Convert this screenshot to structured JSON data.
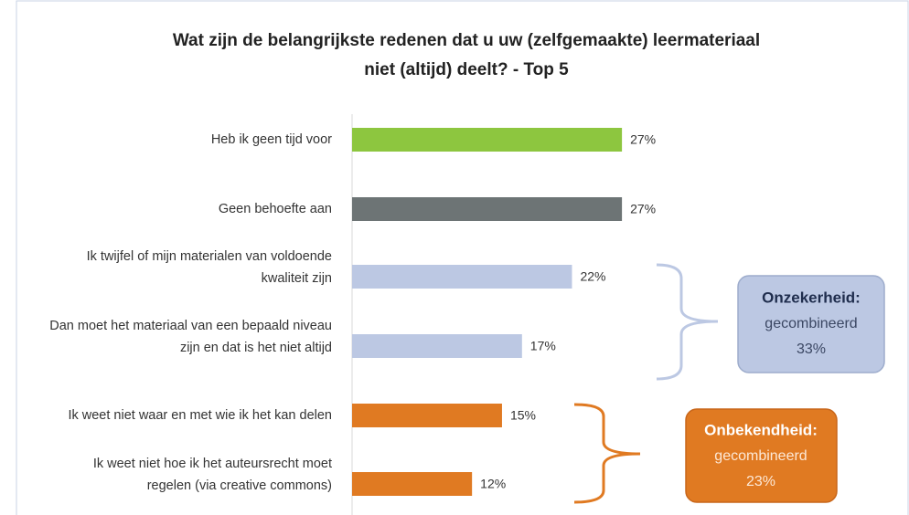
{
  "chart_data": {
    "type": "bar",
    "orientation": "horizontal",
    "title": [
      "Wat zijn de belangrijkste redenen dat u uw (zelfgemaakte) leermateriaal",
      "niet (altijd) deelt? - Top 5"
    ],
    "categories": [
      [
        "Heb ik geen tijd voor"
      ],
      [
        "Geen behoefte aan"
      ],
      [
        "Ik twijfel of mijn materialen van voldoende",
        "kwaliteit zijn"
      ],
      [
        "Dan moet het materiaal van een bepaald niveau",
        "zijn en dat is het niet altijd"
      ],
      [
        "Ik weet niet waar en met wie ik het kan delen"
      ],
      [
        "Ik weet niet hoe ik het auteursrecht moet",
        "regelen (via creative commons)"
      ]
    ],
    "values": [
      27,
      27,
      22,
      17,
      15,
      12
    ],
    "value_labels": [
      "27%",
      "27%",
      "22%",
      "17%",
      "15%",
      "12%"
    ],
    "colors": [
      "#8dc63f",
      "#6d7475",
      "#bcc8e3",
      "#bcc8e3",
      "#e07a22",
      "#e07a22"
    ],
    "annotations": [
      {
        "lines": [
          "Onzekerheid:",
          "gecombineerd",
          "33%"
        ],
        "color": "#bcc8e3"
      },
      {
        "lines": [
          "Onbekendheid:",
          "gecombineerd",
          "23%"
        ],
        "color": "#e07a22"
      }
    ]
  }
}
